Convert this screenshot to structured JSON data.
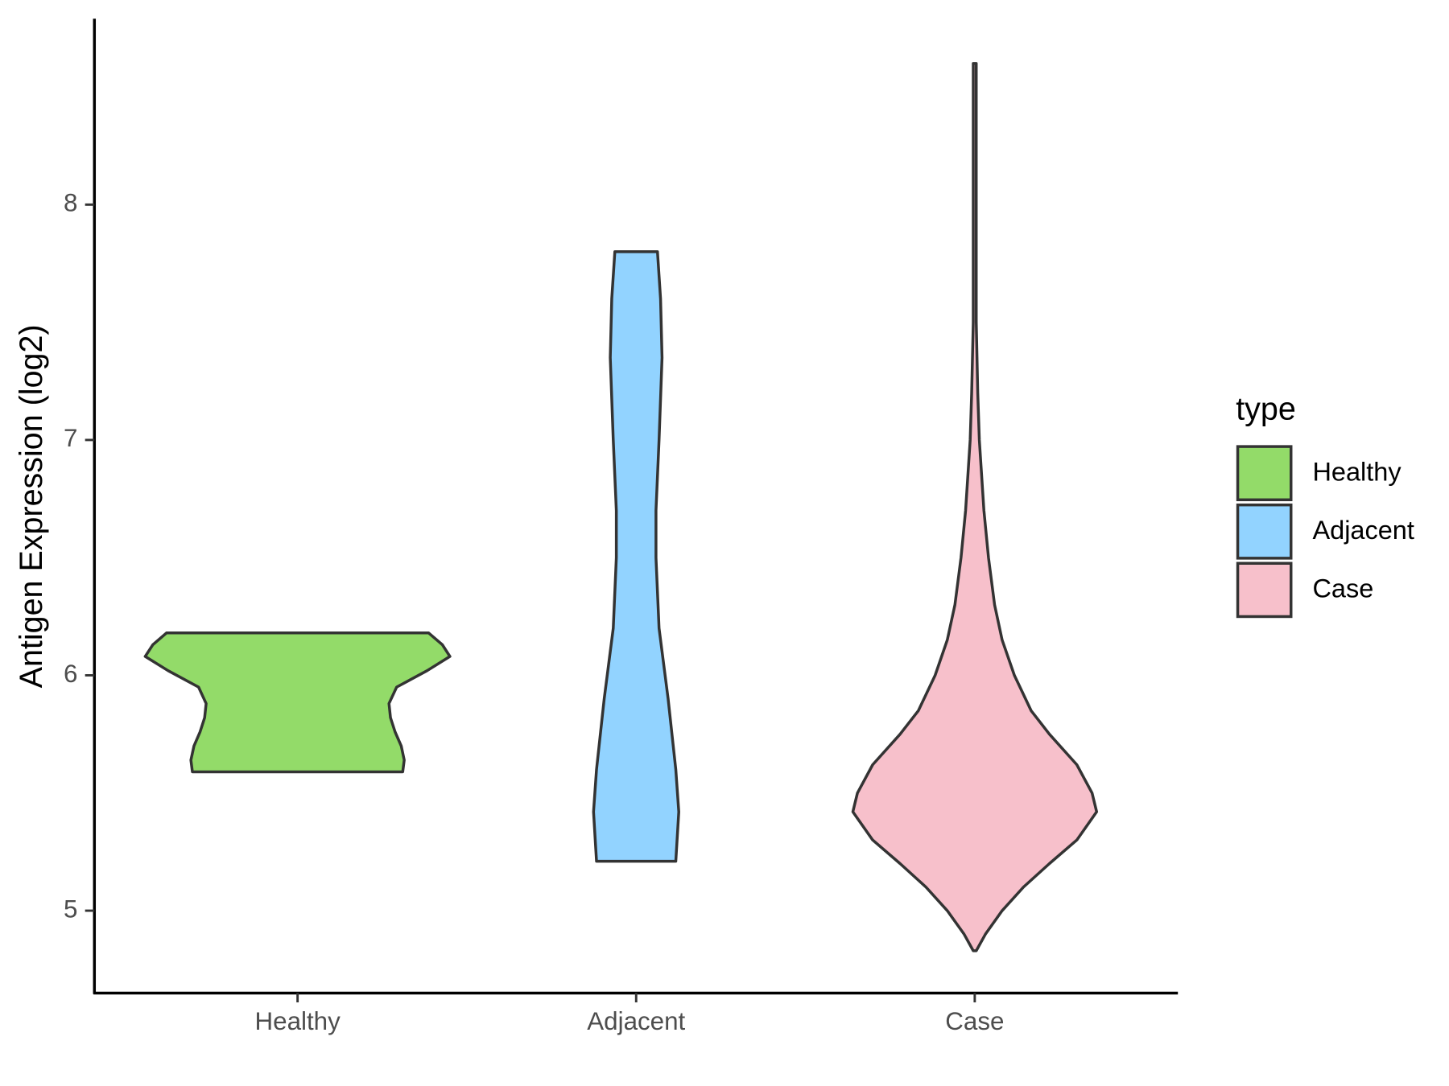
{
  "chart_data": {
    "type": "violin",
    "y_label": "Antigen Expression (log2)",
    "categories": [
      "Healthy",
      "Adjacent",
      "Case"
    ],
    "legend_title": "type",
    "legend_position": "right",
    "ylim": [
      4.65,
      8.79
    ],
    "yticks": [
      5,
      6,
      7,
      8
    ],
    "series": [
      {
        "name": "Healthy",
        "color": "#93db69",
        "y": [
          6.18,
          6.13,
          6.08,
          6.02,
          5.95,
          5.88,
          5.82,
          5.76,
          5.7,
          5.64,
          5.59
        ],
        "density": [
          0.86,
          0.95,
          1.0,
          0.85,
          0.65,
          0.6,
          0.61,
          0.64,
          0.68,
          0.7,
          0.69
        ]
      },
      {
        "name": "Adjacent",
        "color": "#92d3ff",
        "y": [
          7.8,
          7.6,
          7.35,
          7.0,
          6.7,
          6.5,
          6.2,
          5.9,
          5.6,
          5.42,
          5.21
        ],
        "density": [
          0.14,
          0.16,
          0.17,
          0.15,
          0.13,
          0.13,
          0.15,
          0.21,
          0.26,
          0.28,
          0.26
        ]
      },
      {
        "name": "Case",
        "color": "#f7c0cb",
        "y": [
          8.6,
          8.0,
          7.5,
          7.2,
          7.0,
          6.7,
          6.5,
          6.3,
          6.15,
          6.0,
          5.85,
          5.75,
          5.62,
          5.5,
          5.42,
          5.3,
          5.2,
          5.1,
          5.0,
          4.9,
          4.83
        ],
        "density": [
          0.01,
          0.01,
          0.01,
          0.02,
          0.03,
          0.06,
          0.09,
          0.13,
          0.18,
          0.26,
          0.37,
          0.49,
          0.67,
          0.77,
          0.8,
          0.67,
          0.49,
          0.32,
          0.18,
          0.07,
          0.01
        ]
      }
    ]
  }
}
